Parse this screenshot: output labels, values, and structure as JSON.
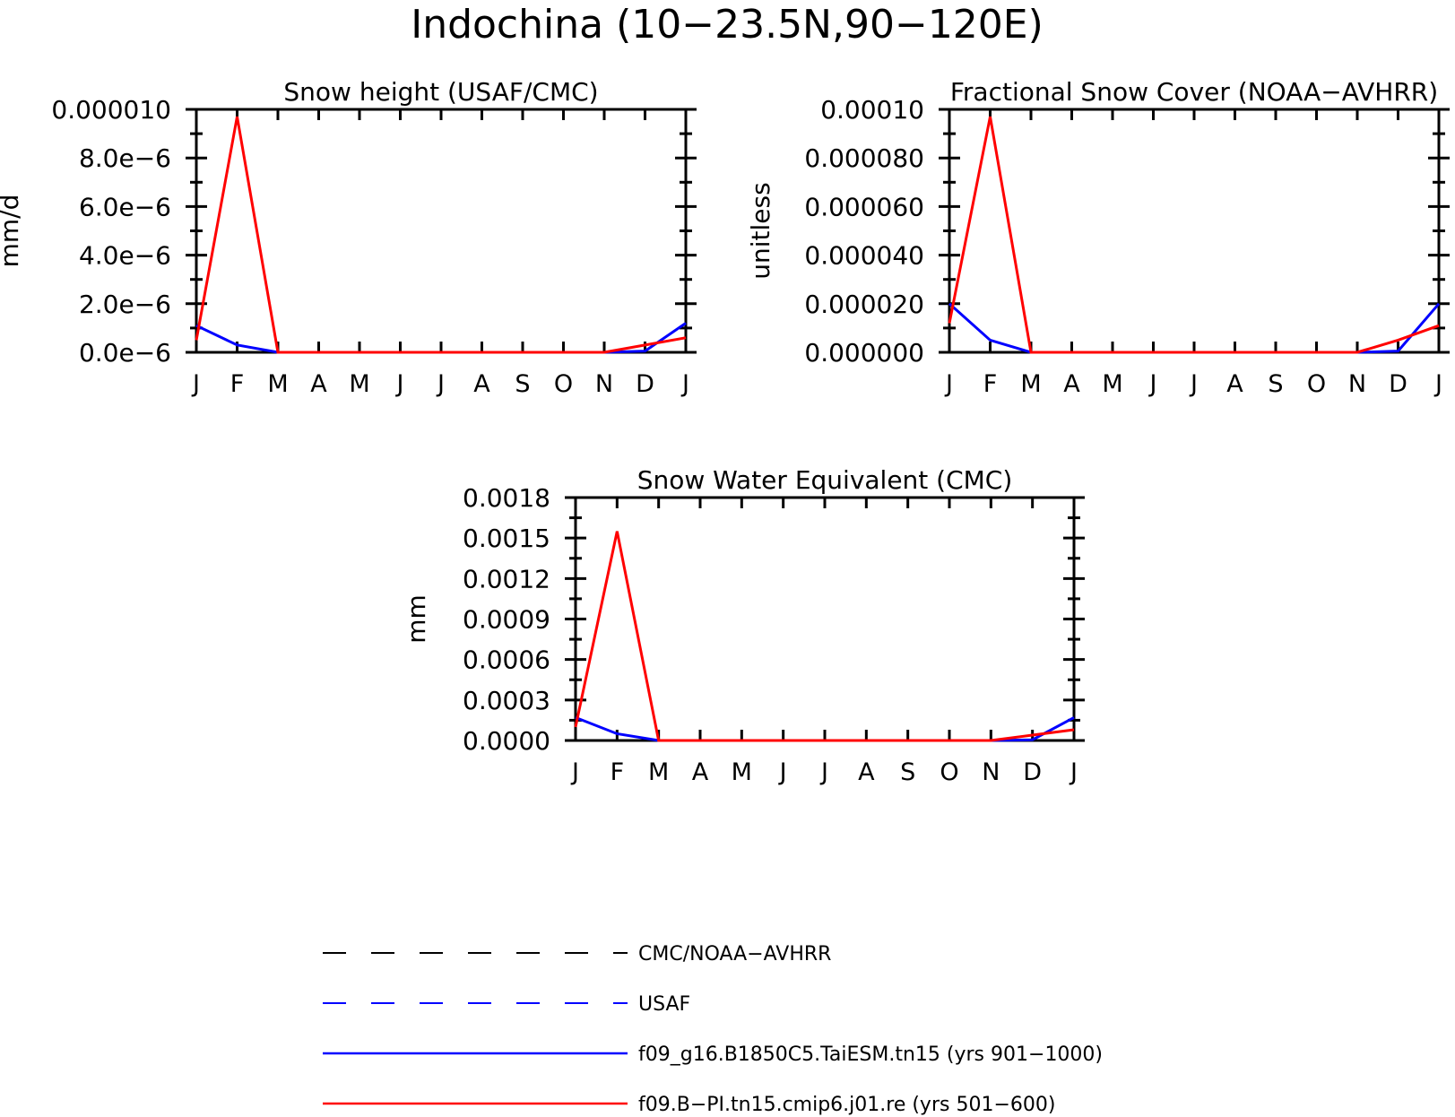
{
  "figure": {
    "title": "Indochina (10−23.5N,90−120E)"
  },
  "colors": {
    "obs_cmc": "#000000",
    "obs_usaf": "#0000ff",
    "model_taiesm": "#0000ff",
    "model_cmip6": "#ff0000"
  },
  "legend": {
    "placement": "bottom-center",
    "items": [
      {
        "label": "CMC/NOAA−AVHRR",
        "style": "dashed",
        "color": "#000000"
      },
      {
        "label": "USAF",
        "style": "dashed",
        "color": "#0000ff"
      },
      {
        "label": "f09_g16.B1850C5.TaiESM.tn15 (yrs 901−1000)",
        "style": "solid",
        "color": "#0000ff"
      },
      {
        "label": "f09.B−PI.tn15.cmip6.j01.re (yrs 501−600)",
        "style": "solid",
        "color": "#ff0000"
      }
    ]
  },
  "chart_data": [
    {
      "type": "line",
      "title": "Snow height (USAF/CMC)",
      "ylabel": "mm/d",
      "categories": [
        "J",
        "F",
        "M",
        "A",
        "M",
        "J",
        "J",
        "A",
        "S",
        "O",
        "N",
        "D",
        "J"
      ],
      "ylim": [
        0,
        1e-05
      ],
      "yticks": [
        "0.0e−6",
        "2.0e−6",
        "4.0e−6",
        "6.0e−6",
        "8.0e−6",
        "0.000010"
      ],
      "grid": false,
      "series": [
        {
          "values": [
            0,
            0,
            0,
            0,
            0,
            0,
            0,
            0,
            0,
            0,
            0,
            0,
            0
          ],
          "color": "#000000",
          "style": "dashed"
        },
        {
          "values": [
            1.1e-06,
            3e-07,
            0,
            0,
            0,
            0,
            0,
            0,
            0,
            0,
            0,
            5e-08,
            1.2e-06
          ],
          "color": "#0000ff",
          "style": "solid"
        },
        {
          "values": [
            5e-07,
            9.7e-06,
            0,
            0,
            0,
            0,
            0,
            0,
            0,
            0,
            0,
            3e-07,
            6e-07
          ],
          "color": "#ff0000",
          "style": "solid"
        }
      ]
    },
    {
      "type": "line",
      "title": "Fractional Snow Cover (NOAA−AVHRR)",
      "ylabel": "unitless",
      "categories": [
        "J",
        "F",
        "M",
        "A",
        "M",
        "J",
        "J",
        "A",
        "S",
        "O",
        "N",
        "D",
        "J"
      ],
      "ylim": [
        0,
        0.0001
      ],
      "yticks": [
        "0.000000",
        "0.000020",
        "0.000040",
        "0.000060",
        "0.000080",
        "0.00010"
      ],
      "grid": false,
      "series": [
        {
          "values": [
            0,
            0,
            0,
            0,
            0,
            0,
            0,
            0,
            0,
            0,
            0,
            0,
            0
          ],
          "color": "#000000",
          "style": "dashed"
        },
        {
          "values": [
            2e-05,
            5e-06,
            0,
            0,
            0,
            0,
            0,
            0,
            0,
            0,
            0,
            5e-07,
            2e-05
          ],
          "color": "#0000ff",
          "style": "solid"
        },
        {
          "values": [
            1.2e-05,
            9.7e-05,
            0,
            0,
            0,
            0,
            0,
            0,
            0,
            0,
            0,
            5e-06,
            1.1e-05
          ],
          "color": "#ff0000",
          "style": "solid"
        }
      ]
    },
    {
      "type": "line",
      "title": "Snow Water Equivalent (CMC)",
      "ylabel": "mm",
      "categories": [
        "J",
        "F",
        "M",
        "A",
        "M",
        "J",
        "J",
        "A",
        "S",
        "O",
        "N",
        "D",
        "J"
      ],
      "ylim": [
        0,
        0.0018
      ],
      "yticks": [
        "0.0000",
        "0.0003",
        "0.0006",
        "0.0009",
        "0.0012",
        "0.0015",
        "0.0018"
      ],
      "grid": false,
      "series": [
        {
          "values": [
            0,
            0,
            0,
            0,
            0,
            0,
            0,
            0,
            0,
            0,
            0,
            0,
            0
          ],
          "color": "#000000",
          "style": "dashed"
        },
        {
          "values": [
            0.00017,
            5e-05,
            0,
            0,
            0,
            0,
            0,
            0,
            0,
            0,
            0,
            5e-06,
            0.00017
          ],
          "color": "#0000ff",
          "style": "solid"
        },
        {
          "values": [
            0.0001,
            0.00155,
            0,
            0,
            0,
            0,
            0,
            0,
            0,
            0,
            0,
            4e-05,
            8e-05
          ],
          "color": "#ff0000",
          "style": "solid"
        }
      ]
    }
  ]
}
